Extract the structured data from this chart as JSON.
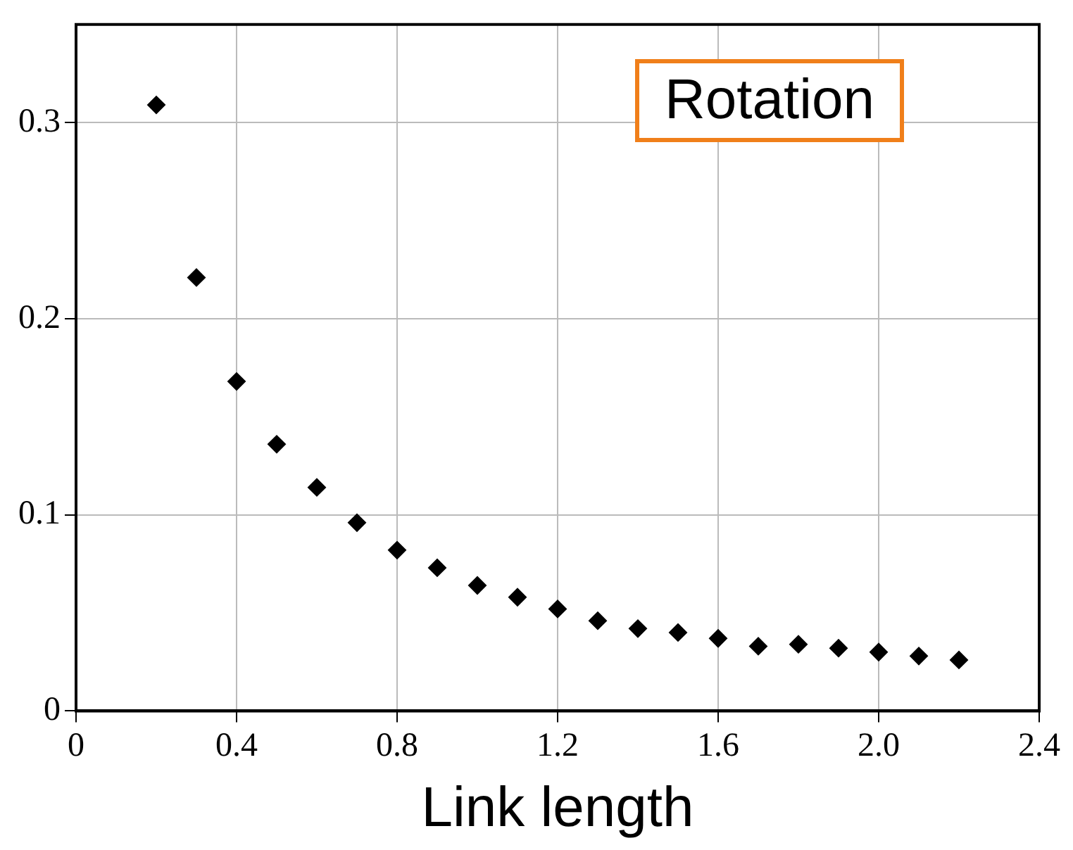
{
  "chart_data": {
    "type": "scatter",
    "xlabel": "Link length",
    "annotations": [
      "Rotation"
    ],
    "x": [
      0.2,
      0.3,
      0.4,
      0.5,
      0.6,
      0.7,
      0.8,
      0.9,
      1.0,
      1.1,
      1.2,
      1.3,
      1.4,
      1.5,
      1.6,
      1.7,
      1.8,
      1.9,
      2.0,
      2.1,
      2.2
    ],
    "series": [
      {
        "color": "#000000",
        "values": [
          0.309,
          0.221,
          0.168,
          0.136,
          0.114,
          0.096,
          0.082,
          0.073,
          0.064,
          0.058,
          0.052,
          0.046,
          0.042,
          0.04,
          0.037,
          0.033,
          0.034,
          0.032,
          0.03,
          0.028,
          0.026
        ]
      }
    ],
    "xlim": [
      0,
      2.4
    ],
    "xticks": [
      0,
      0.4,
      0.8,
      1.2,
      1.6,
      {
        "value": 2,
        "label": "2.0"
      },
      2.4
    ],
    "ylim": [
      0,
      0.35
    ],
    "yticks": [
      0,
      0.1,
      0.2,
      0.3
    ],
    "grid": true,
    "legend": false,
    "marker": "diamond"
  }
}
